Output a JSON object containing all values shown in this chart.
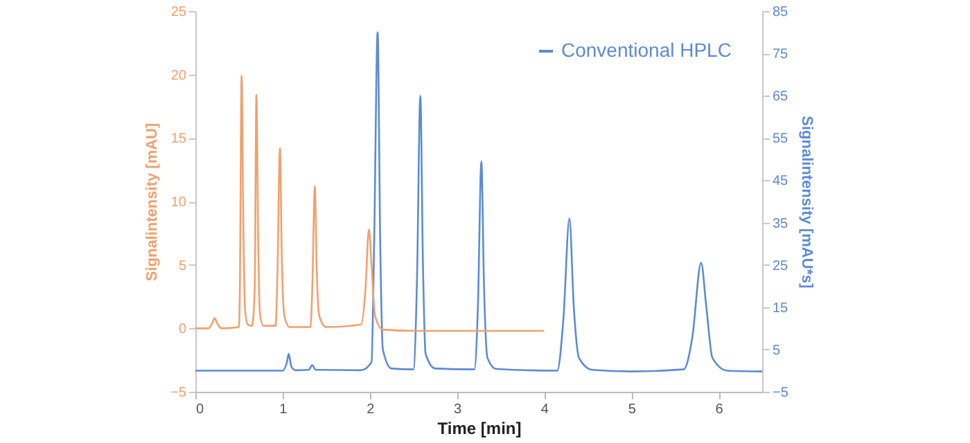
{
  "chart_data": {
    "type": "line",
    "xlabel": "Time [min]",
    "ylabel": "Signalintensity [mAU]",
    "y2label": "Signalintensity [mAU*s]",
    "xlim": [
      0,
      6.5
    ],
    "xticks": [
      0,
      1,
      2,
      3,
      4,
      5,
      6
    ],
    "ylim": [
      -5,
      25
    ],
    "yticks": [
      -5,
      0,
      5,
      10,
      15,
      20,
      25
    ],
    "y2lim": [
      -5,
      85
    ],
    "y2ticks": [
      -5,
      5,
      15,
      25,
      35,
      45,
      55,
      65,
      75,
      85
    ],
    "legend": "top right",
    "series": [
      {
        "name": "Conventional HPLC",
        "color": "#5b8bd6",
        "axis": "y2",
        "x": [
          0,
          1.0,
          1.05,
          1.07,
          1.1,
          1.15,
          1.3,
          1.34,
          1.38,
          1.9,
          2.02,
          2.05,
          2.09,
          2.12,
          2.15,
          2.25,
          2.5,
          2.54,
          2.58,
          2.61,
          2.64,
          2.75,
          3.2,
          3.24,
          3.28,
          3.31,
          3.35,
          3.45,
          4.15,
          4.22,
          4.29,
          4.34,
          4.4,
          4.55,
          5.0,
          5.6,
          5.7,
          5.8,
          5.86,
          5.93,
          6.1,
          6.5
        ],
        "values": [
          0,
          0,
          2,
          4,
          1,
          0.1,
          0.2,
          1.3,
          0.2,
          0.1,
          2,
          30,
          80,
          30,
          5,
          0.5,
          0.3,
          20,
          65,
          25,
          4,
          0.5,
          0.3,
          15,
          49.5,
          20,
          3,
          0.4,
          0,
          12,
          36,
          15,
          3,
          0.2,
          -0.2,
          0.3,
          8,
          25.5,
          15,
          3,
          0,
          -0.2
        ]
      },
      {
        "color": "#f2a06c",
        "x": [
          0,
          0.15,
          0.2,
          0.22,
          0.25,
          0.3,
          0.5,
          0.51,
          0.53,
          0.55,
          0.57,
          0.6,
          0.65,
          0.68,
          0.7,
          0.72,
          0.74,
          0.78,
          0.92,
          0.94,
          0.97,
          0.99,
          1.02,
          1.08,
          1.32,
          1.34,
          1.37,
          1.39,
          1.42,
          1.5,
          1.9,
          1.95,
          1.99,
          2.02,
          2.06,
          2.15,
          2.5,
          3.0,
          3.5,
          4.0
        ],
        "values": [
          0,
          0,
          0.5,
          0.8,
          0.4,
          0,
          0.1,
          3,
          19.9,
          8,
          1.5,
          0.3,
          0.2,
          3,
          18.4,
          7,
          1.2,
          0.2,
          0.2,
          4,
          14.2,
          6,
          1,
          0.1,
          0.1,
          3,
          11.2,
          5,
          1,
          0.1,
          0.3,
          3,
          7.8,
          5,
          1,
          -0.1,
          -0.2,
          -0.2,
          -0.2,
          -0.2
        ]
      }
    ]
  }
}
